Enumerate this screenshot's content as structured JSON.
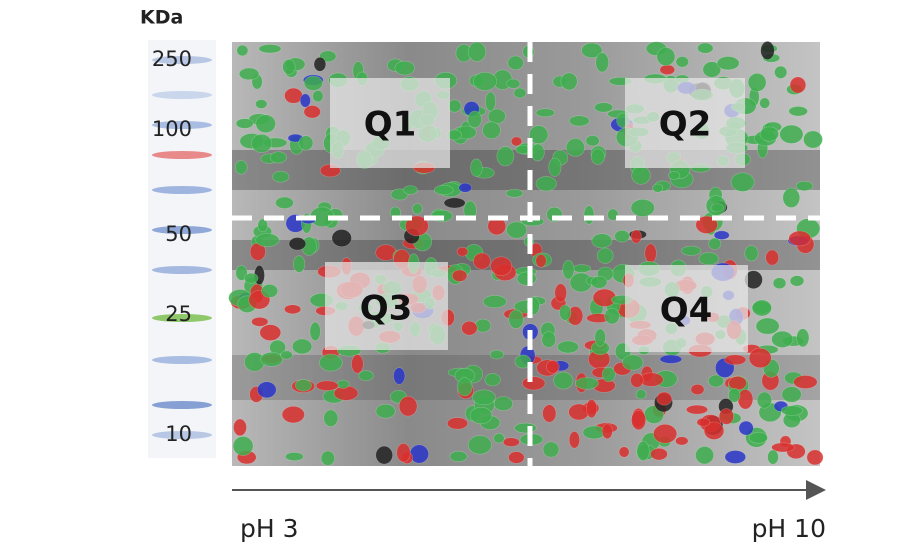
{
  "axis_label": "KDa",
  "markers": [
    250,
    100,
    50,
    25,
    10
  ],
  "quadrants": [
    "Q1",
    "Q2",
    "Q3",
    "Q4"
  ],
  "ph_axis": {
    "start": "pH 3",
    "end": "pH 10"
  }
}
